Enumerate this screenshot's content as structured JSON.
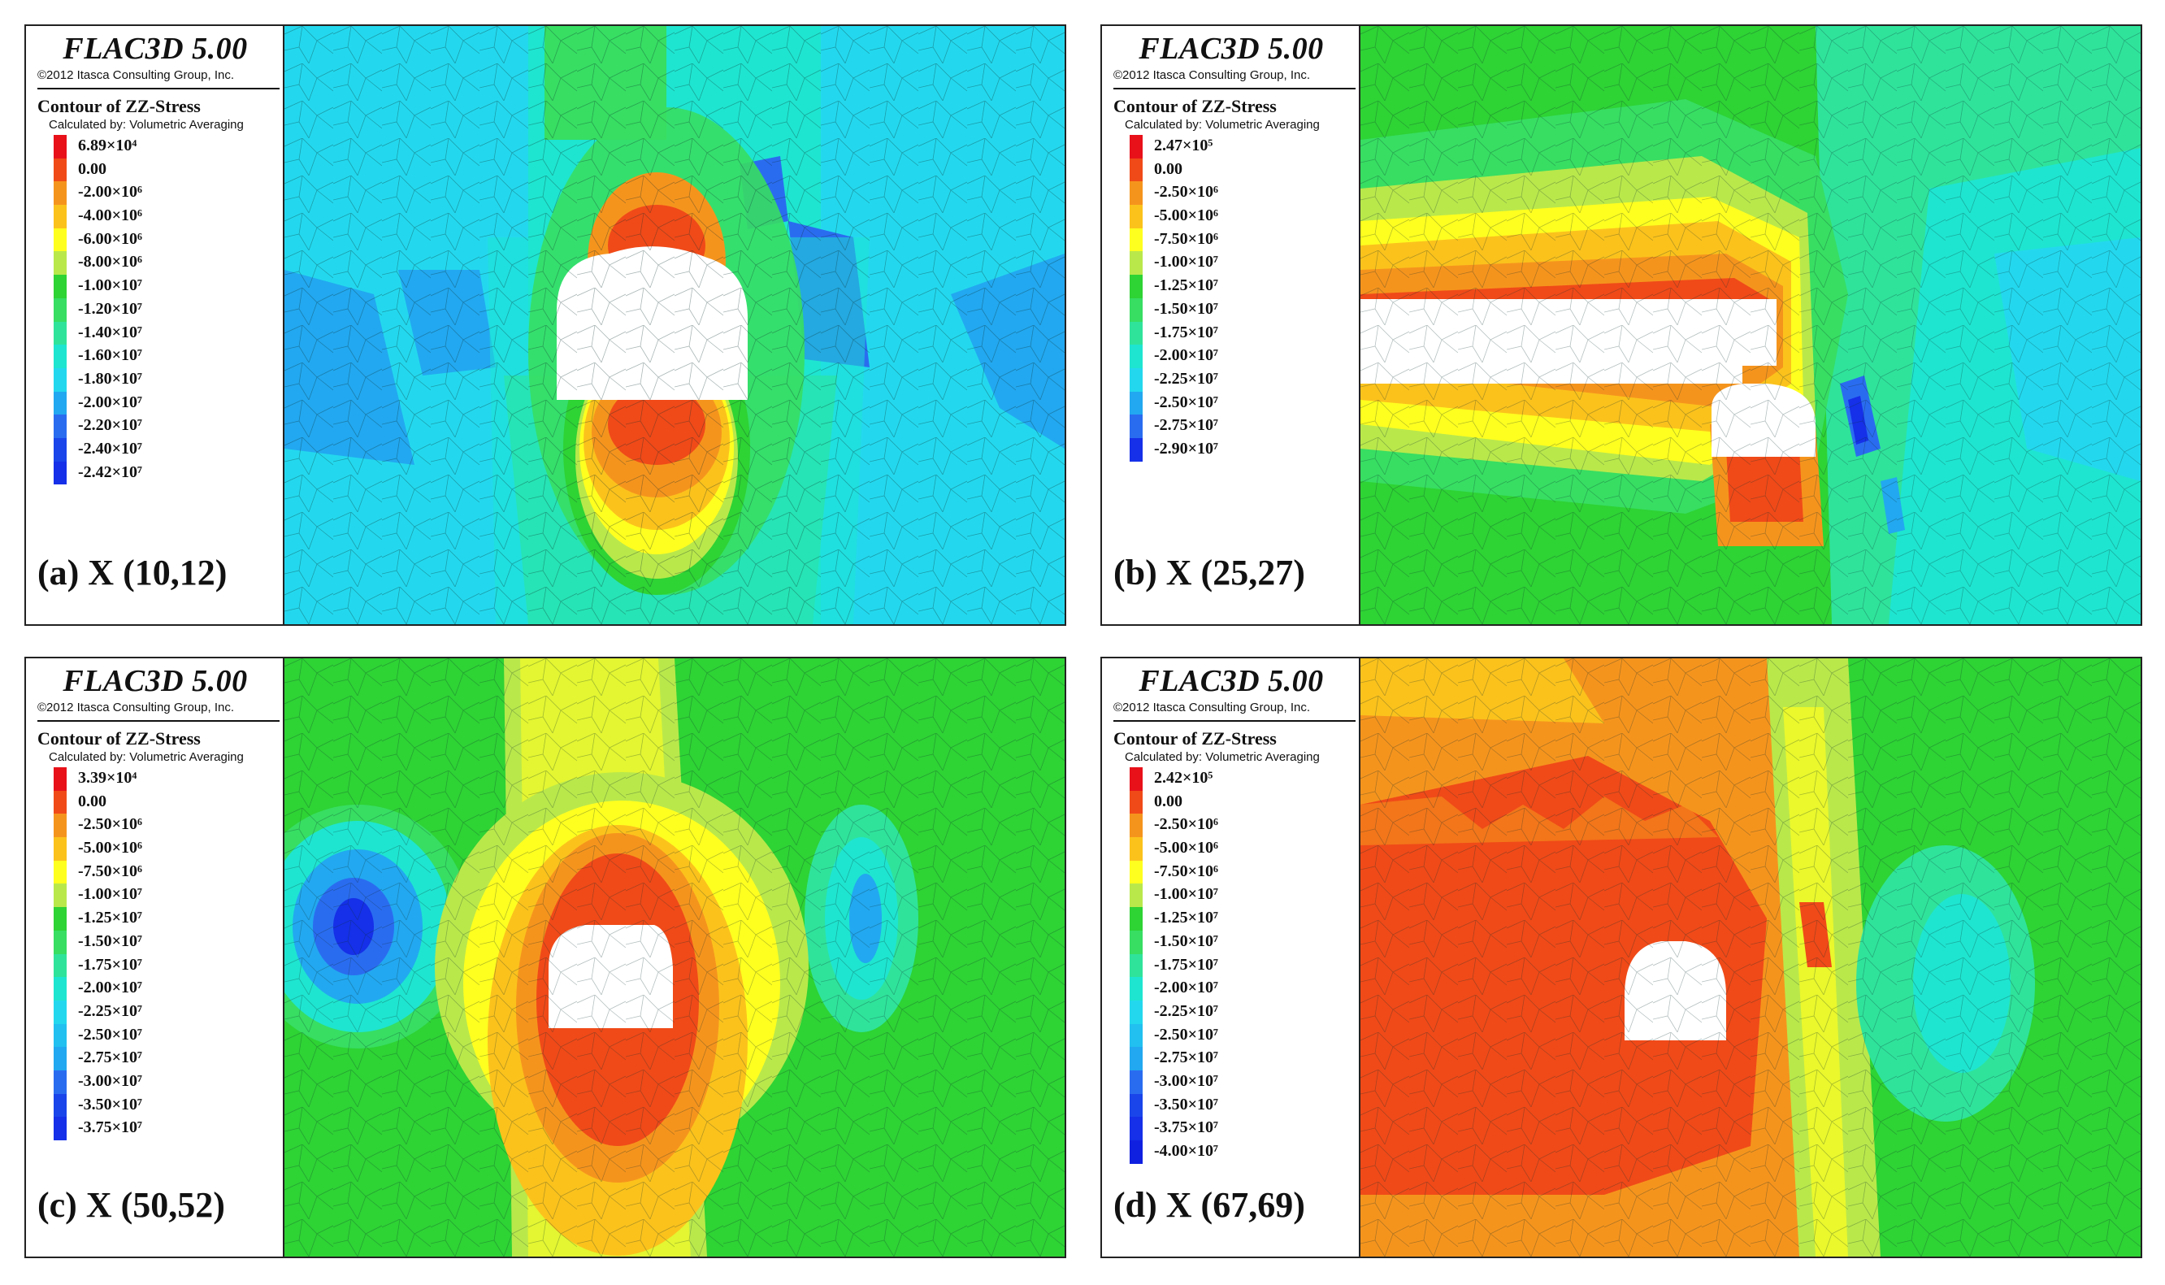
{
  "software": "FLAC3D 5.00",
  "copyright": "©2012 Itasca Consulting Group, Inc.",
  "contour_title": "Contour of ZZ-Stress",
  "calculated_by": "Calculated by: Volumetric Averaging",
  "colors": {
    "red": "#e8111a",
    "orange_red": "#f04a18",
    "orange": "#f5941d",
    "light_orange": "#fbc21c",
    "yellow": "#ffff1f",
    "yellow_green": "#b9e84b",
    "green": "#2ed334",
    "light_green": "#37de62",
    "teal_green": "#2fe39b",
    "aqua": "#1ee5d0",
    "cyan": "#23d8ee",
    "sky": "#22a8f0",
    "blue": "#2a6cf0",
    "deep_blue": "#1530e8"
  },
  "panels": [
    {
      "id": "a",
      "label": "(a) X (10,12)",
      "scale": [
        {
          "value": "6.89×10⁴",
          "color": "#e8111a"
        },
        {
          "value": "0.00",
          "color": "#f04a18"
        },
        {
          "value": "-2.00×10⁶",
          "color": "#f5941d"
        },
        {
          "value": "-4.00×10⁶",
          "color": "#fbc21c"
        },
        {
          "value": "-6.00×10⁶",
          "color": "#ffff1f"
        },
        {
          "value": "-8.00×10⁶",
          "color": "#b9e84b"
        },
        {
          "value": "-1.00×10⁷",
          "color": "#2ed334"
        },
        {
          "value": "-1.20×10⁷",
          "color": "#37de62"
        },
        {
          "value": "-1.40×10⁷",
          "color": "#2fe39b"
        },
        {
          "value": "-1.60×10⁷",
          "color": "#1ee5d0"
        },
        {
          "value": "-1.80×10⁷",
          "color": "#23d8ee"
        },
        {
          "value": "-2.00×10⁷",
          "color": "#22a8f0"
        },
        {
          "value": "-2.20×10⁷",
          "color": "#2a6cf0"
        },
        {
          "value": "-2.40×10⁷",
          "color": "#1a45ea"
        },
        {
          "value": "-2.42×10⁷",
          "color": "#1530e8"
        }
      ]
    },
    {
      "id": "b",
      "label": "(b) X (25,27)",
      "scale": [
        {
          "value": "2.47×10⁵",
          "color": "#e8111a"
        },
        {
          "value": "0.00",
          "color": "#f04a18"
        },
        {
          "value": "-2.50×10⁶",
          "color": "#f5941d"
        },
        {
          "value": "-5.00×10⁶",
          "color": "#fbc21c"
        },
        {
          "value": "-7.50×10⁶",
          "color": "#ffff1f"
        },
        {
          "value": "-1.00×10⁷",
          "color": "#b9e84b"
        },
        {
          "value": "-1.25×10⁷",
          "color": "#2ed334"
        },
        {
          "value": "-1.50×10⁷",
          "color": "#37de62"
        },
        {
          "value": "-1.75×10⁷",
          "color": "#2fe39b"
        },
        {
          "value": "-2.00×10⁷",
          "color": "#1ee5d0"
        },
        {
          "value": "-2.25×10⁷",
          "color": "#23d8ee"
        },
        {
          "value": "-2.50×10⁷",
          "color": "#22a8f0"
        },
        {
          "value": "-2.75×10⁷",
          "color": "#2a6cf0"
        },
        {
          "value": "-2.90×10⁷",
          "color": "#1530e8"
        }
      ]
    },
    {
      "id": "c",
      "label": "(c) X (50,52)",
      "scale": [
        {
          "value": "3.39×10⁴",
          "color": "#e8111a"
        },
        {
          "value": "0.00",
          "color": "#f04a18"
        },
        {
          "value": "-2.50×10⁶",
          "color": "#f5941d"
        },
        {
          "value": "-5.00×10⁶",
          "color": "#fbc21c"
        },
        {
          "value": "-7.50×10⁶",
          "color": "#ffff1f"
        },
        {
          "value": "-1.00×10⁷",
          "color": "#b9e84b"
        },
        {
          "value": "-1.25×10⁷",
          "color": "#2ed334"
        },
        {
          "value": "-1.50×10⁷",
          "color": "#37de62"
        },
        {
          "value": "-1.75×10⁷",
          "color": "#2fe39b"
        },
        {
          "value": "-2.00×10⁷",
          "color": "#1ee5d0"
        },
        {
          "value": "-2.25×10⁷",
          "color": "#23d8ee"
        },
        {
          "value": "-2.50×10⁷",
          "color": "#22c0f0"
        },
        {
          "value": "-2.75×10⁷",
          "color": "#22a8f0"
        },
        {
          "value": "-3.00×10⁷",
          "color": "#2a6cf0"
        },
        {
          "value": "-3.50×10⁷",
          "color": "#1a45ea"
        },
        {
          "value": "-3.75×10⁷",
          "color": "#1530e8"
        }
      ]
    },
    {
      "id": "d",
      "label": "(d) X (67,69)",
      "scale": [
        {
          "value": "2.42×10⁵",
          "color": "#e8111a"
        },
        {
          "value": "0.00",
          "color": "#f04a18"
        },
        {
          "value": "-2.50×10⁶",
          "color": "#f5941d"
        },
        {
          "value": "-5.00×10⁶",
          "color": "#fbc21c"
        },
        {
          "value": "-7.50×10⁶",
          "color": "#ffff1f"
        },
        {
          "value": "-1.00×10⁷",
          "color": "#b9e84b"
        },
        {
          "value": "-1.25×10⁷",
          "color": "#2ed334"
        },
        {
          "value": "-1.50×10⁷",
          "color": "#37de62"
        },
        {
          "value": "-1.75×10⁷",
          "color": "#2fe39b"
        },
        {
          "value": "-2.00×10⁷",
          "color": "#1ee5d0"
        },
        {
          "value": "-2.25×10⁷",
          "color": "#23d8ee"
        },
        {
          "value": "-2.50×10⁷",
          "color": "#22c0f0"
        },
        {
          "value": "-2.75×10⁷",
          "color": "#22a8f0"
        },
        {
          "value": "-3.00×10⁷",
          "color": "#2a6cf0"
        },
        {
          "value": "-3.50×10⁷",
          "color": "#1a45ea"
        },
        {
          "value": "-3.75×10⁷",
          "color": "#1530e8"
        },
        {
          "value": "-4.00×10⁷",
          "color": "#1020e0"
        }
      ]
    }
  ]
}
